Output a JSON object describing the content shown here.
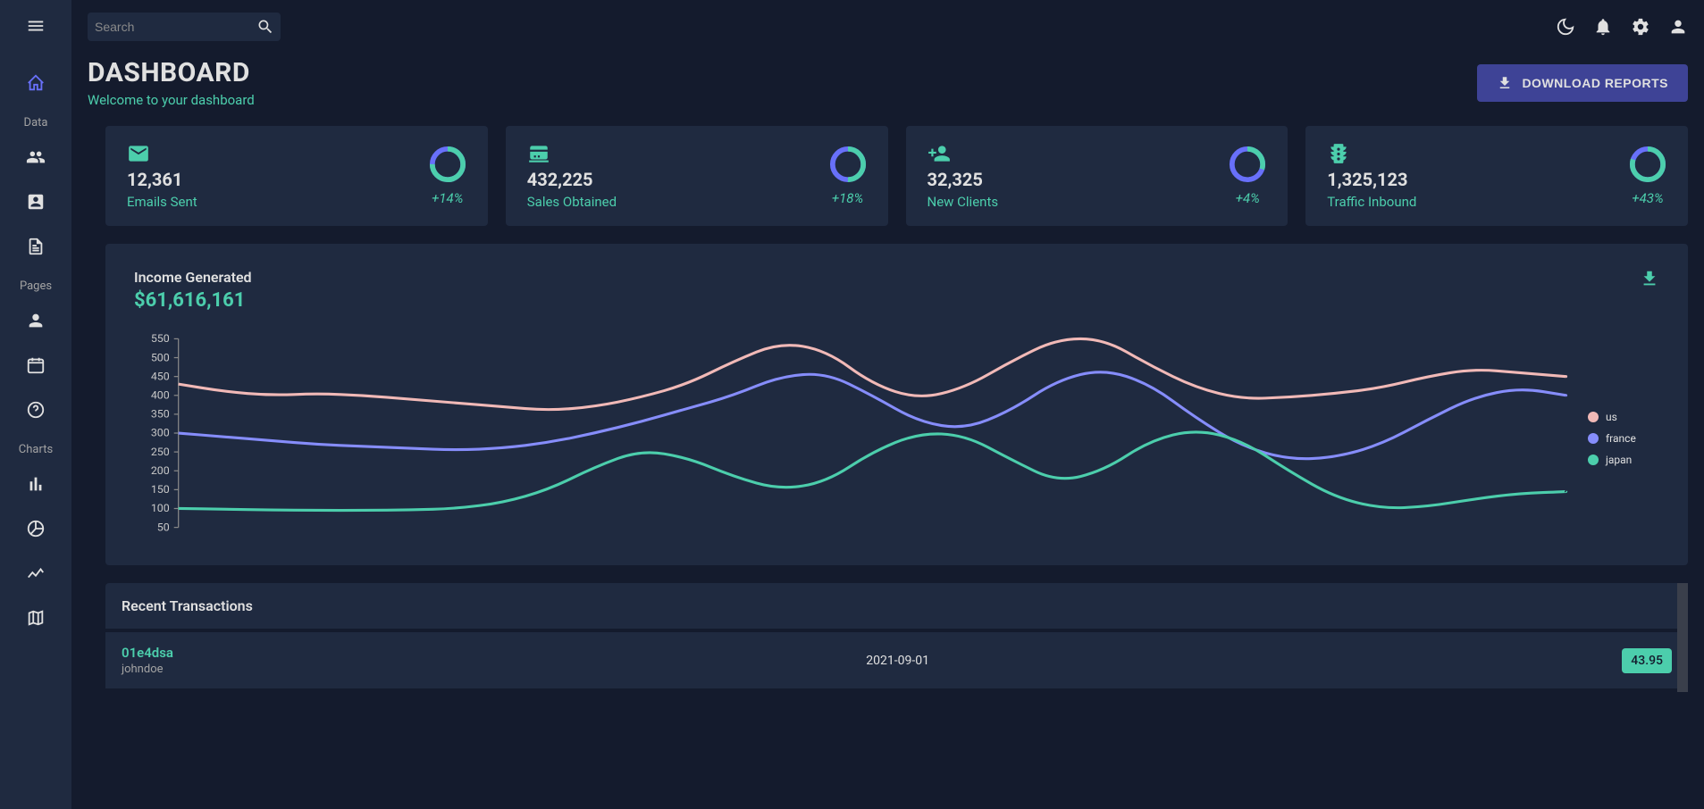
{
  "sidebar": {
    "sections": [
      {
        "label": "Data"
      },
      {
        "label": "Pages"
      },
      {
        "label": "Charts"
      }
    ]
  },
  "topbar": {
    "search_placeholder": "Search"
  },
  "header": {
    "title": "DASHBOARD",
    "subtitle": "Welcome to your dashboard",
    "download_label": "DOWNLOAD REPORTS"
  },
  "stats": [
    {
      "icon": "email",
      "value": "12,361",
      "label": "Emails Sent",
      "pct": "+14%",
      "progress": 0.75
    },
    {
      "icon": "pos",
      "value": "432,225",
      "label": "Sales Obtained",
      "pct": "+18%",
      "progress": 0.5
    },
    {
      "icon": "person_add",
      "value": "32,325",
      "label": "New Clients",
      "pct": "+4%",
      "progress": 0.3
    },
    {
      "icon": "traffic",
      "value": "1,325,123",
      "label": "Traffic Inbound",
      "pct": "+43%",
      "progress": 0.8
    }
  ],
  "income_chart": {
    "title": "Income Generated",
    "amount": "$61,616,161",
    "y_ticks": [
      50,
      100,
      150,
      200,
      250,
      300,
      350,
      400,
      450,
      500,
      550
    ],
    "series": [
      {
        "id": "us",
        "color": "#f1b9b7",
        "data": [
          430,
          410,
          400,
          405,
          400,
          390,
          380,
          370,
          360,
          370,
          395,
          430,
          490,
          540,
          520,
          430,
          390,
          420,
          490,
          550,
          550,
          480,
          420,
          390,
          395,
          405,
          420,
          450,
          470,
          460,
          450
        ]
      },
      {
        "id": "france",
        "color": "#868dfb",
        "data": [
          300,
          290,
          280,
          270,
          265,
          260,
          255,
          260,
          275,
          300,
          330,
          365,
          400,
          450,
          460,
          400,
          330,
          310,
          360,
          440,
          470,
          430,
          340,
          265,
          230,
          235,
          270,
          335,
          395,
          420,
          400
        ]
      },
      {
        "id": "japan",
        "color": "#4cceac",
        "data": [
          100,
          98,
          96,
          95,
          95,
          96,
          100,
          115,
          150,
          210,
          255,
          235,
          185,
          150,
          170,
          250,
          300,
          295,
          230,
          170,
          200,
          280,
          310,
          280,
          200,
          130,
          100,
          105,
          125,
          140,
          145
        ]
      }
    ],
    "colors": {
      "axis": "#c7c7c7",
      "background": "#1f2a40"
    }
  },
  "transactions": {
    "title": "Recent Transactions",
    "rows": [
      {
        "id": "01e4dsa",
        "user": "johndoe",
        "date": "2021-09-01",
        "amount": "43.95"
      }
    ]
  },
  "colors": {
    "accent_green": "#4cceac",
    "accent_blue": "#6870fa",
    "card_bg": "#1f2a40",
    "page_bg": "#141b2d",
    "button_bg": "#3e4396"
  }
}
